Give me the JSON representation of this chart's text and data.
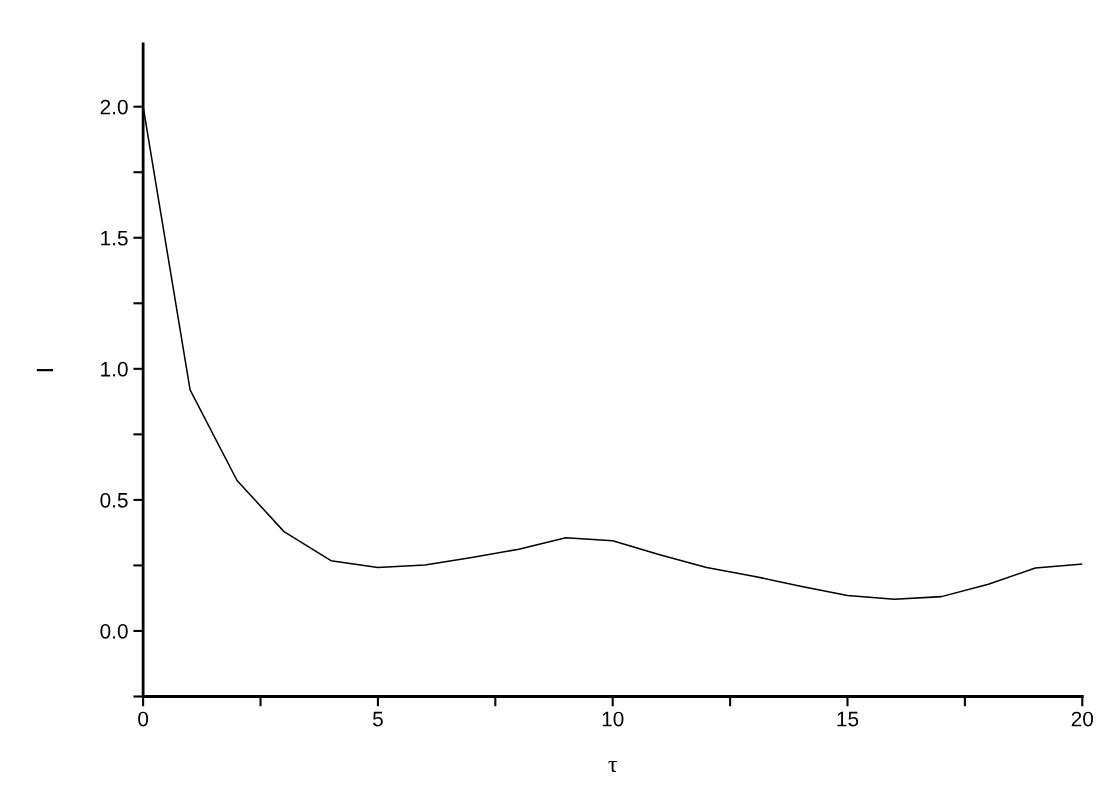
{
  "chart_data": {
    "type": "line",
    "xlabel": "τ",
    "ylabel": "I",
    "x": [
      0,
      1,
      2,
      3,
      4,
      5,
      6,
      7,
      8,
      9,
      10,
      11,
      12,
      13,
      14,
      15,
      16,
      17,
      18,
      19,
      20
    ],
    "series": [
      {
        "color": "#000000",
        "values": [
          2.0,
          0.92,
          0.574,
          0.379,
          0.268,
          0.242,
          0.252,
          0.28,
          0.312,
          0.356,
          0.344,
          0.291,
          0.242,
          0.209,
          0.171,
          0.135,
          0.121,
          0.131,
          0.178,
          0.24,
          0.255
        ]
      }
    ],
    "xlim": [
      0,
      20
    ],
    "ylim": [
      -0.25,
      2.24
    ],
    "xticks": [
      0,
      {
        "value": 2.5,
        "label": null
      },
      5,
      {
        "value": 7.5,
        "label": null
      },
      10,
      {
        "value": 12.5,
        "label": null
      },
      15,
      {
        "value": 17.5,
        "label": null
      },
      20
    ],
    "yticks": [
      {
        "value": -0.25,
        "label": null
      },
      {
        "value": 0,
        "label": "0.0"
      },
      {
        "value": 0.25,
        "label": null
      },
      0.5,
      {
        "value": 0.75,
        "label": null
      },
      {
        "value": 1,
        "label": "1.0"
      },
      {
        "value": 1.25,
        "label": null
      },
      1.5,
      {
        "value": 1.75,
        "label": null
      },
      {
        "value": 2,
        "label": "2.0"
      }
    ],
    "grid": false,
    "legend": false,
    "marker": "none",
    "line_style": "solid"
  }
}
